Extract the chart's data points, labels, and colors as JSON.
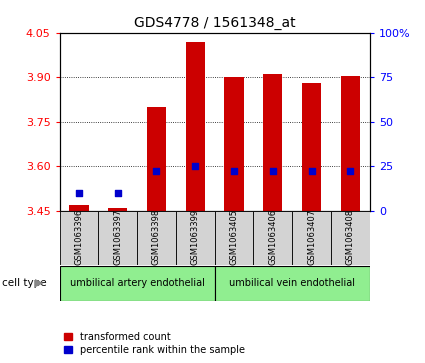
{
  "title": "GDS4778 / 1561348_at",
  "samples": [
    "GSM1063396",
    "GSM1063397",
    "GSM1063398",
    "GSM1063399",
    "GSM1063405",
    "GSM1063406",
    "GSM1063407",
    "GSM1063408"
  ],
  "red_values": [
    3.47,
    3.46,
    3.8,
    4.02,
    3.9,
    3.91,
    3.88,
    3.905
  ],
  "blue_percentiles": [
    10,
    10,
    22,
    25,
    22,
    22,
    22,
    22
  ],
  "ylim_left": [
    3.45,
    4.05
  ],
  "ylim_right": [
    0,
    100
  ],
  "yticks_left": [
    3.45,
    3.6,
    3.75,
    3.9,
    4.05
  ],
  "yticks_right": [
    0,
    25,
    50,
    75,
    100
  ],
  "ytick_right_labels": [
    "0",
    "25",
    "50",
    "75",
    "100%"
  ],
  "group1_label": "umbilical artery endothelial",
  "group2_label": "umbilical vein endothelial",
  "group1_indices": [
    0,
    1,
    2,
    3
  ],
  "group2_indices": [
    4,
    5,
    6,
    7
  ],
  "cell_type_label": "cell type",
  "legend_red": "transformed count",
  "legend_blue": "percentile rank within the sample",
  "bar_width": 0.5,
  "red_color": "#CC0000",
  "blue_color": "#0000CC",
  "group_bg": "#90EE90",
  "axes_bg": "#D3D3D3",
  "title_fontsize": 10,
  "tick_fontsize": 8,
  "label_fontsize": 7
}
